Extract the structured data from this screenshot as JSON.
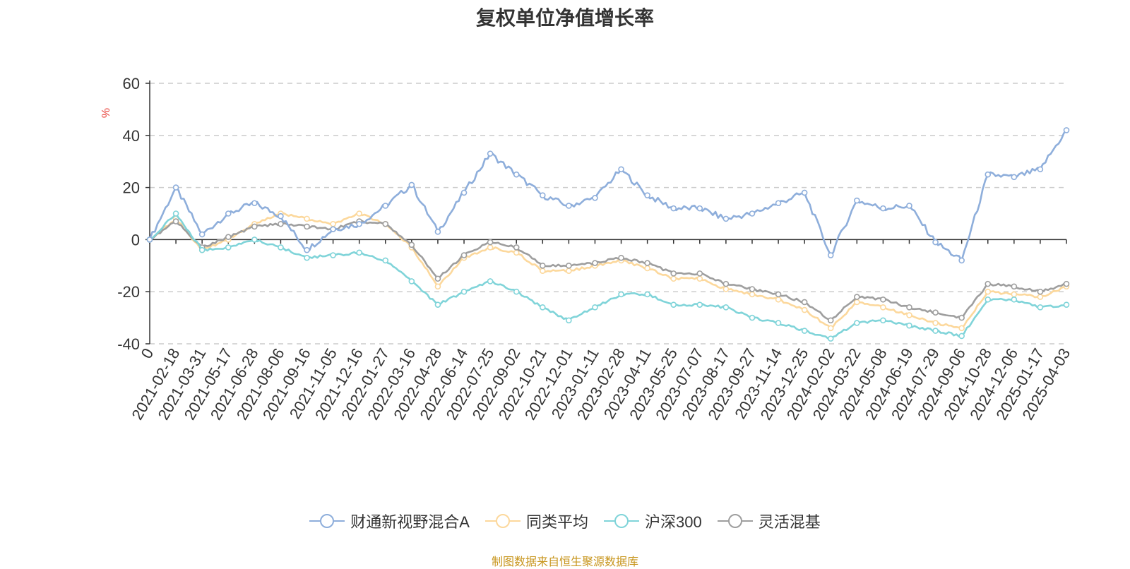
{
  "chart_data": {
    "type": "line",
    "title": "复权单位净值增长率",
    "ylabel": "%",
    "ylim": [
      -40,
      60
    ],
    "yticks": [
      60,
      40,
      20,
      0,
      -20,
      -40
    ],
    "grid": true,
    "legend_position": "bottom-center",
    "x": [
      "0",
      "2021-02-18",
      "2021-03-31",
      "2021-05-17",
      "2021-06-28",
      "2021-08-06",
      "2021-09-16",
      "2021-11-05",
      "2021-12-16",
      "2022-01-27",
      "2022-03-16",
      "2022-04-28",
      "2022-06-14",
      "2022-07-25",
      "2022-09-02",
      "2022-10-21",
      "2022-12-01",
      "2023-01-11",
      "2023-02-28",
      "2023-04-11",
      "2023-05-25",
      "2023-07-07",
      "2023-08-17",
      "2023-09-27",
      "2023-11-14",
      "2023-12-25",
      "2024-02-02",
      "2024-03-22",
      "2024-05-08",
      "2024-06-19",
      "2024-07-29",
      "2024-09-06",
      "2024-10-28",
      "2024-12-06",
      "2025-01-17",
      "2025-04-03"
    ],
    "series": [
      {
        "name": "财通新视野混合A",
        "color": "#8eaedb",
        "values": [
          0,
          20,
          2,
          10,
          14,
          9,
          -4,
          4,
          6,
          13,
          21,
          3,
          18,
          33,
          25,
          17,
          13,
          16,
          27,
          17,
          12,
          12,
          8,
          10,
          14,
          18,
          -6,
          15,
          12,
          13,
          -1,
          -8,
          25,
          24,
          27,
          42
        ]
      },
      {
        "name": "同类平均",
        "color": "#fcd89c",
        "values": [
          0,
          8,
          -4,
          0,
          6,
          10,
          8,
          6,
          10,
          6,
          -3,
          -18,
          -7,
          -3,
          -5,
          -12,
          -12,
          -10,
          -8,
          -11,
          -15,
          -15,
          -19,
          -21,
          -23,
          -27,
          -34,
          -24,
          -26,
          -29,
          -32,
          -34,
          -20,
          -21,
          -22,
          -18
        ]
      },
      {
        "name": "沪深300",
        "color": "#80d4d9",
        "values": [
          0,
          10,
          -4,
          -3,
          0,
          -3,
          -7,
          -6,
          -5,
          -8,
          -16,
          -25,
          -20,
          -16,
          -20,
          -26,
          -31,
          -26,
          -21,
          -21,
          -25,
          -25,
          -26,
          -30,
          -32,
          -35,
          -38,
          -32,
          -31,
          -33,
          -35,
          -37,
          -23,
          -23,
          -26,
          -25
        ]
      },
      {
        "name": "灵活混基",
        "color": "#9e9e9e",
        "values": [
          0,
          7,
          -3,
          1,
          5,
          6,
          5,
          4,
          7,
          6,
          -2,
          -15,
          -6,
          -1,
          -3,
          -10,
          -10,
          -9,
          -7,
          -9,
          -13,
          -13,
          -17,
          -19,
          -21,
          -24,
          -31,
          -22,
          -23,
          -26,
          -28,
          -30,
          -17,
          -18,
          -20,
          -17
        ]
      }
    ]
  },
  "footer": "制图数据来自恒生聚源数据库"
}
